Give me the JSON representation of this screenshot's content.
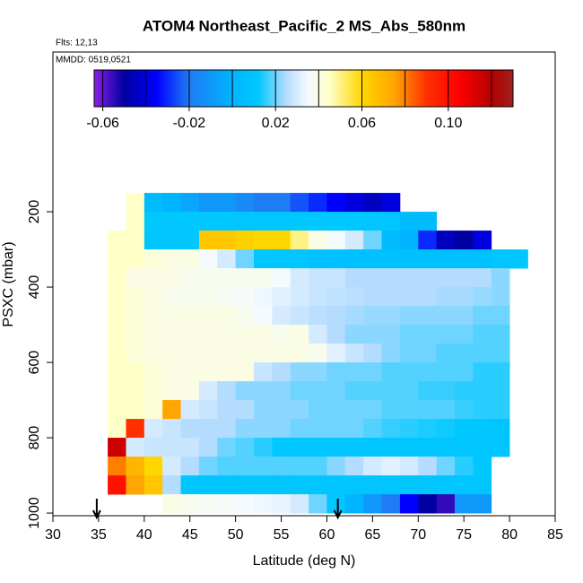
{
  "chart_data": {
    "type": "heatmap",
    "title": "ATOM4 Northeast_Pacific_2 MS_Abs_580nm",
    "subtitle": "Flts: 12,13",
    "annotation": "MMDD: 0519,0521",
    "x_label": "Latitude (deg N)",
    "y_label": "PSXC (mbar)",
    "xlim": [
      30,
      85
    ],
    "xticks": [
      30,
      35,
      40,
      45,
      50,
      55,
      60,
      65,
      70,
      75,
      80,
      85
    ],
    "ylim": [
      1007,
      -224
    ],
    "yticks": [
      200,
      400,
      600,
      800,
      1000
    ],
    "x_bins": [
      34,
      36,
      38,
      40,
      42,
      44,
      46,
      48,
      50,
      52,
      54,
      56,
      58,
      60,
      62,
      64,
      66,
      68,
      70,
      72,
      74,
      76,
      78,
      80,
      82
    ],
    "y_bins": [
      150,
      200,
      250,
      300,
      350,
      400,
      450,
      500,
      550,
      600,
      650,
      700,
      750,
      800,
      850,
      900,
      950,
      1000
    ],
    "z": [
      [
        null,
        null,
        0.045,
        0.005,
        0.0,
        -0.005,
        -0.01,
        -0.01,
        -0.015,
        -0.02,
        -0.02,
        -0.025,
        -0.03,
        -0.035,
        -0.04,
        -0.045,
        -0.04,
        null,
        null,
        null,
        null,
        null,
        null,
        null
      ],
      [
        null,
        null,
        0.045,
        0.012,
        0.012,
        0.012,
        0.012,
        0.012,
        0.01,
        0.01,
        0.01,
        0.012,
        0.012,
        0.012,
        0.012,
        0.01,
        0.01,
        0.005,
        0.005,
        null,
        null,
        null,
        null,
        null
      ],
      [
        null,
        0.045,
        0.045,
        0.01,
        0.01,
        0.012,
        0.065,
        0.065,
        0.062,
        0.06,
        0.06,
        0.05,
        0.04,
        0.035,
        0.03,
        0.02,
        0.005,
        0.0,
        -0.03,
        -0.045,
        -0.05,
        -0.04,
        null,
        null
      ],
      [
        null,
        0.045,
        0.045,
        0.042,
        0.04,
        0.04,
        0.035,
        0.03,
        0.02,
        0.012,
        0.01,
        0.01,
        0.008,
        0.008,
        0.008,
        0.008,
        0.008,
        0.008,
        0.008,
        0.008,
        0.008,
        0.008,
        0.01,
        0.012
      ],
      [
        null,
        0.045,
        0.04,
        0.04,
        0.04,
        0.038,
        0.038,
        0.038,
        0.038,
        0.038,
        0.035,
        0.03,
        0.028,
        0.028,
        0.025,
        0.025,
        0.025,
        0.025,
        0.025,
        0.025,
        0.025,
        0.025,
        0.022,
        null
      ],
      [
        null,
        0.045,
        0.042,
        0.04,
        0.038,
        0.038,
        0.038,
        0.037,
        0.036,
        0.034,
        0.032,
        0.03,
        0.028,
        0.027,
        0.026,
        0.025,
        0.025,
        0.025,
        0.025,
        0.024,
        0.024,
        0.023,
        0.022,
        null
      ],
      [
        null,
        0.045,
        0.042,
        0.04,
        0.04,
        0.04,
        0.04,
        0.04,
        0.038,
        0.035,
        0.03,
        0.028,
        0.026,
        0.025,
        0.024,
        0.023,
        0.023,
        0.022,
        0.022,
        0.022,
        0.022,
        0.02,
        0.02,
        null
      ],
      [
        null,
        0.045,
        0.042,
        0.04,
        0.04,
        0.04,
        0.04,
        0.04,
        0.04,
        0.04,
        0.038,
        0.04,
        0.03,
        0.025,
        0.022,
        0.022,
        0.022,
        0.02,
        0.02,
        0.02,
        0.02,
        0.018,
        0.018,
        null
      ],
      [
        null,
        0.045,
        0.042,
        0.04,
        0.04,
        0.04,
        0.04,
        0.04,
        0.04,
        0.04,
        0.04,
        0.04,
        0.038,
        0.032,
        0.028,
        0.025,
        0.022,
        0.02,
        0.02,
        0.018,
        0.018,
        0.018,
        0.018,
        null
      ],
      [
        null,
        0.045,
        0.045,
        0.042,
        0.04,
        0.04,
        0.04,
        0.04,
        0.04,
        0.028,
        0.025,
        0.022,
        0.022,
        0.02,
        0.02,
        0.02,
        0.018,
        0.018,
        0.018,
        0.018,
        0.018,
        0.015,
        0.015,
        null
      ],
      [
        null,
        0.045,
        0.045,
        0.042,
        0.04,
        0.04,
        0.03,
        0.025,
        0.022,
        0.022,
        0.022,
        0.02,
        0.02,
        0.02,
        0.018,
        0.018,
        0.018,
        0.018,
        0.016,
        0.016,
        0.015,
        0.015,
        0.015,
        null
      ],
      [
        null,
        0.045,
        0.045,
        0.042,
        0.075,
        0.03,
        0.028,
        0.025,
        0.025,
        0.022,
        0.022,
        0.022,
        0.02,
        0.02,
        0.02,
        0.02,
        0.018,
        0.018,
        0.018,
        0.018,
        0.016,
        0.015,
        0.015,
        null
      ],
      [
        null,
        0.045,
        0.09,
        0.03,
        0.028,
        0.025,
        0.025,
        0.025,
        0.022,
        0.022,
        0.022,
        0.02,
        0.02,
        0.02,
        0.02,
        0.018,
        0.016,
        0.015,
        0.014,
        0.013,
        0.012,
        0.012,
        0.01,
        null
      ],
      [
        null,
        0.115,
        0.03,
        0.028,
        0.028,
        0.028,
        0.025,
        0.02,
        0.018,
        0.015,
        0.012,
        0.01,
        0.01,
        0.01,
        0.01,
        0.01,
        0.01,
        0.01,
        0.01,
        0.01,
        0.01,
        0.01,
        0.01,
        null
      ],
      [
        null,
        0.08,
        0.07,
        0.06,
        0.03,
        0.025,
        0.02,
        0.018,
        0.018,
        0.018,
        0.018,
        0.018,
        0.018,
        0.022,
        0.025,
        0.03,
        0.032,
        0.03,
        0.025,
        0.02,
        0.015,
        0.012,
        null,
        null
      ],
      [
        null,
        0.1,
        0.075,
        0.065,
        0.025,
        0.01,
        0.01,
        0.01,
        0.01,
        0.01,
        0.01,
        0.01,
        0.01,
        0.01,
        0.01,
        0.01,
        0.01,
        0.01,
        0.01,
        0.01,
        0.01,
        0.01,
        null,
        null
      ],
      [
        null,
        null,
        null,
        null,
        0.04,
        0.038,
        0.037,
        0.036,
        0.035,
        0.034,
        0.033,
        0.03,
        0.02,
        0.01,
        0.0,
        -0.01,
        -0.02,
        -0.035,
        -0.05,
        -0.055,
        -0.01,
        -0.01,
        null,
        null
      ]
    ],
    "zlim": [
      -0.064,
      0.13
    ],
    "zticks": [
      -0.06,
      -0.02,
      0.02,
      0.06,
      {
        "value": 0.1,
        "label": "0.10"
      }
    ],
    "zgrid": [
      -0.06,
      -0.04,
      -0.02,
      0,
      0.02,
      0.04,
      0.06,
      0.08,
      0.1,
      0.12
    ],
    "colorscale": [
      [
        -0.064,
        "#8a1ee6"
      ],
      [
        -0.05,
        "#0000a0"
      ],
      [
        -0.035,
        "#0000ff"
      ],
      [
        -0.02,
        "#1e7cf5"
      ],
      [
        0.0,
        "#00b4ff"
      ],
      [
        0.012,
        "#00c8ff"
      ],
      [
        0.025,
        "#b4dcff"
      ],
      [
        0.035,
        "#f5faff"
      ],
      [
        0.045,
        "#ffffc8"
      ],
      [
        0.06,
        "#ffd700"
      ],
      [
        0.075,
        "#ffa500"
      ],
      [
        0.09,
        "#ff3000"
      ],
      [
        0.105,
        "#ff0000"
      ],
      [
        0.12,
        "#b40000"
      ],
      [
        0.13,
        "#a02020"
      ]
    ],
    "markers": [
      34.8,
      61.2
    ]
  }
}
